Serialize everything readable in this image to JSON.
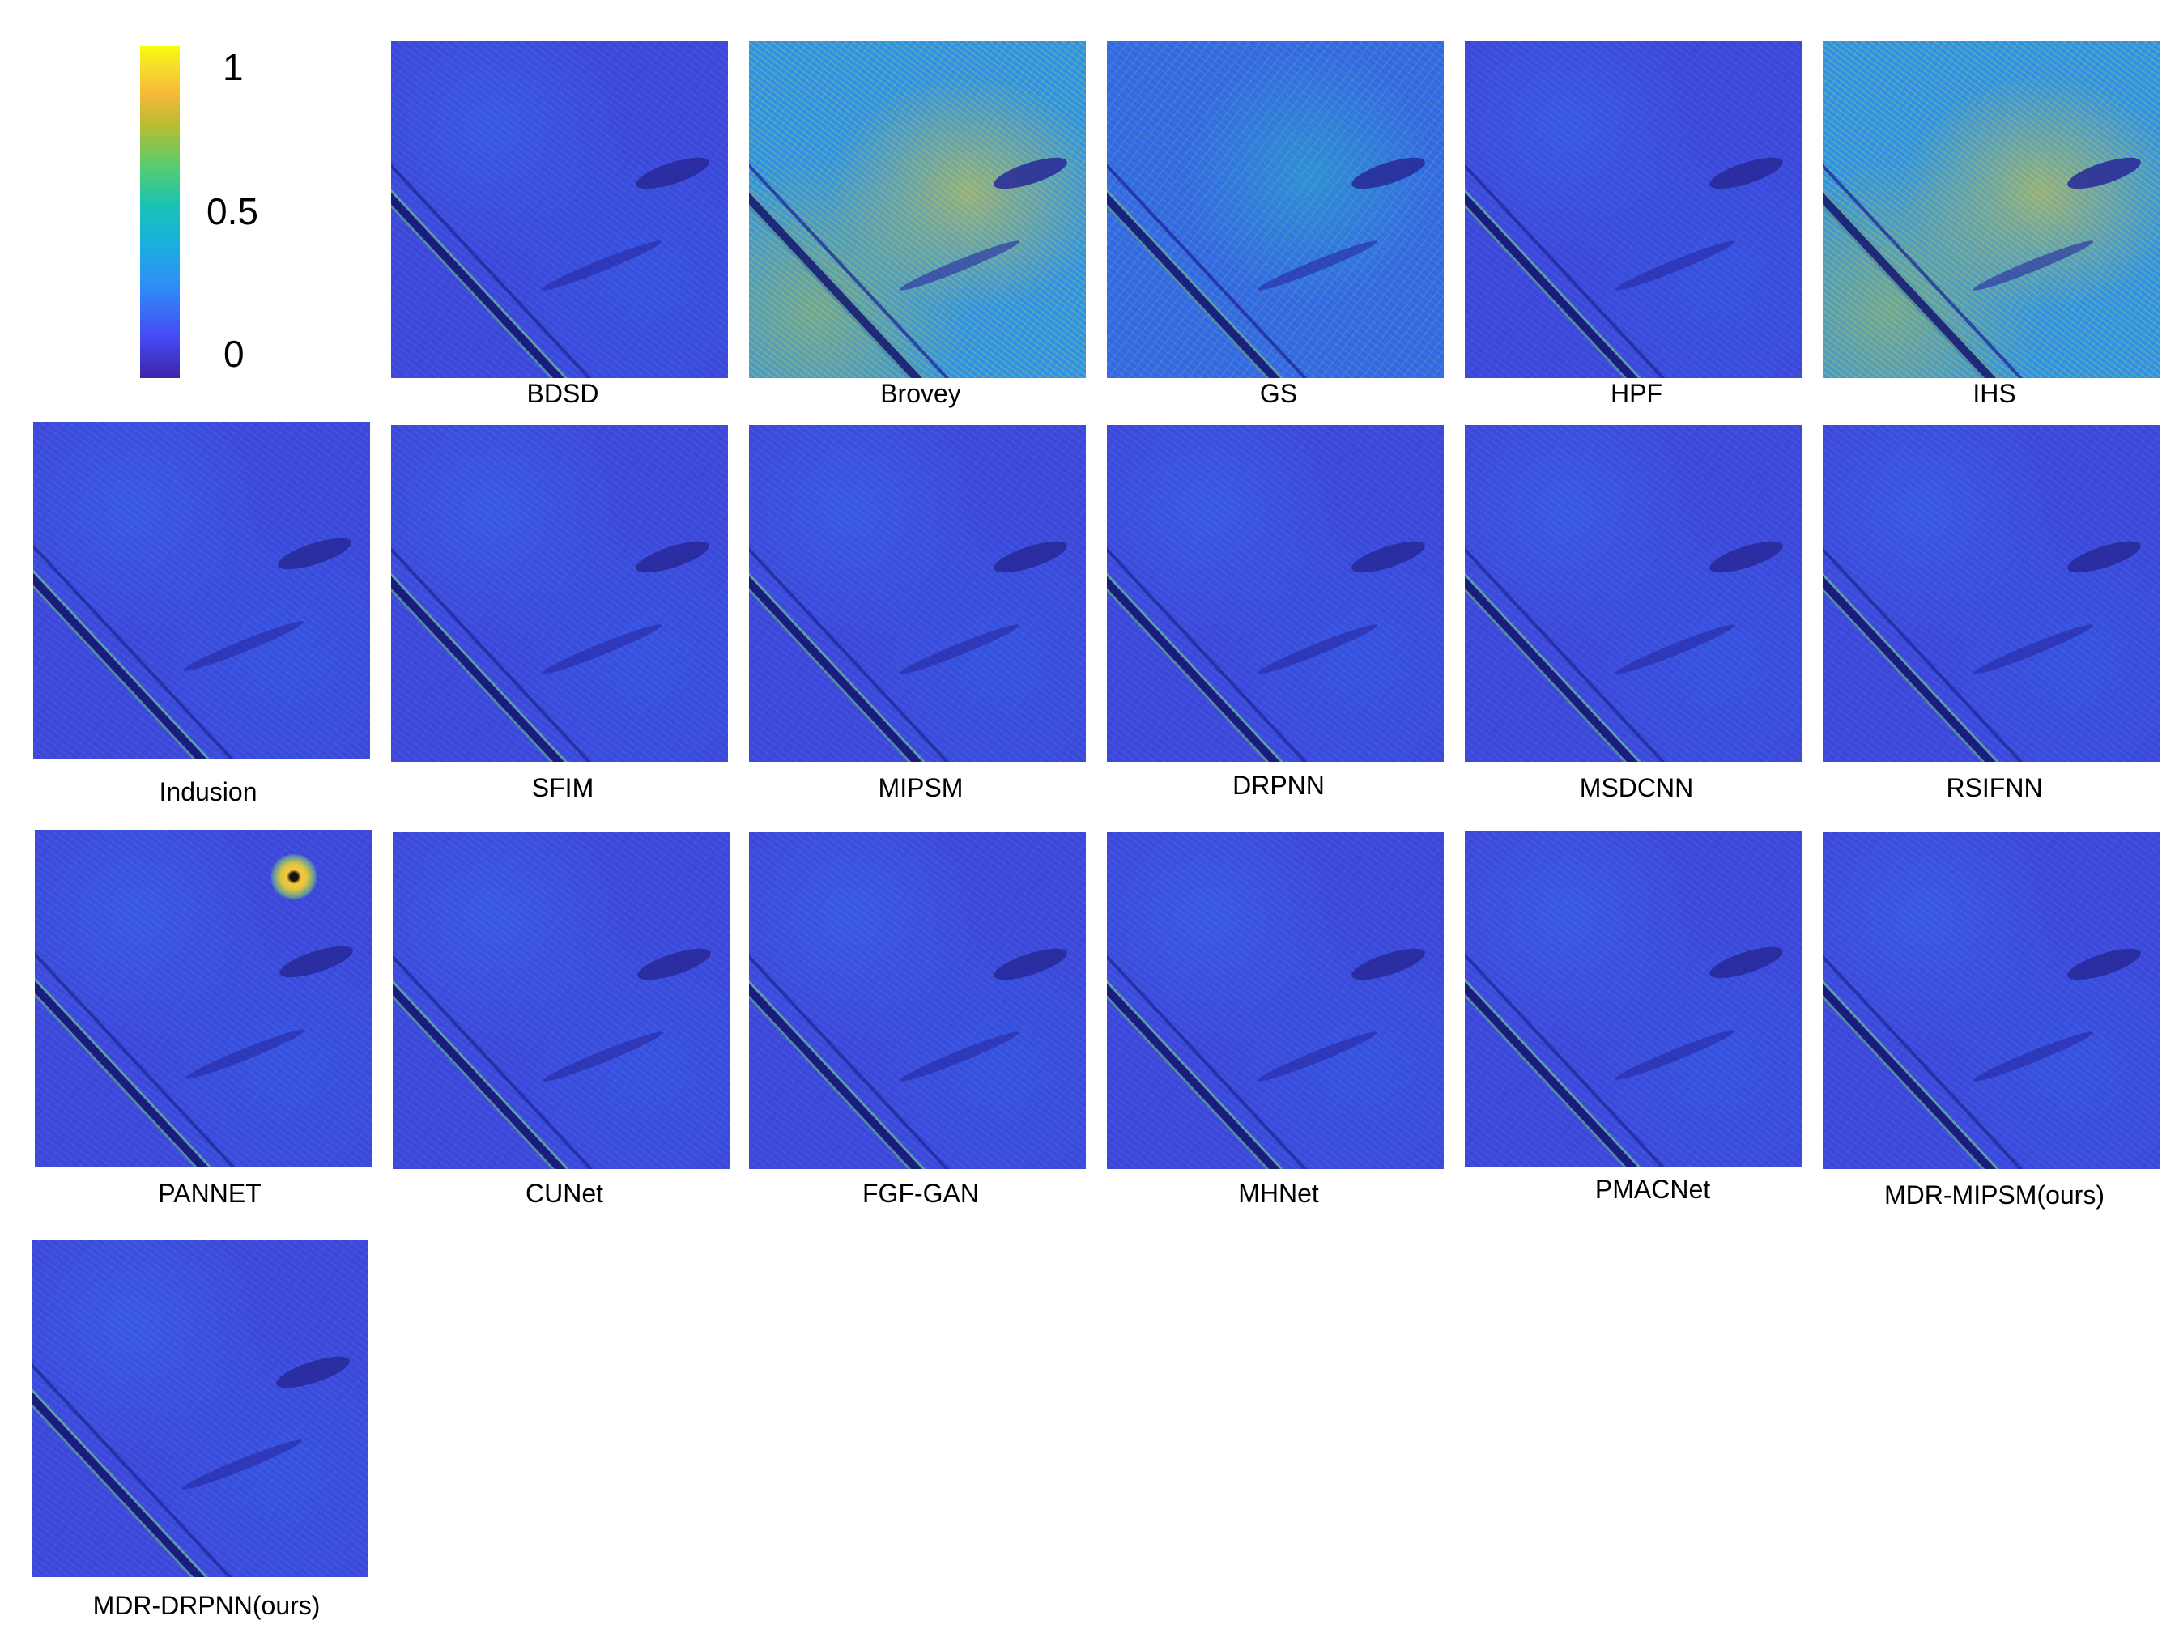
{
  "colorbar": {
    "ticks": [
      "1",
      "0.5",
      "0"
    ],
    "colormap": [
      "#3e26a8",
      "#4748f5",
      "#2f8ff8",
      "#17b3d9",
      "#18c4b4",
      "#59cc6e",
      "#b7bd32",
      "#f9b93a",
      "#f7de2a",
      "#f9fb0e"
    ]
  },
  "panels": [
    {
      "label": "BDSD",
      "intensity": "cool"
    },
    {
      "label": "Brovey",
      "intensity": "hot"
    },
    {
      "label": "GS",
      "intensity": "warm"
    },
    {
      "label": "HPF",
      "intensity": "cool"
    },
    {
      "label": "IHS",
      "intensity": "hot"
    },
    {
      "label": "Indusion",
      "intensity": "cool"
    },
    {
      "label": "SFIM",
      "intensity": "cool"
    },
    {
      "label": "MIPSM",
      "intensity": "cool"
    },
    {
      "label": "DRPNN",
      "intensity": "cool"
    },
    {
      "label": "MSDCNN",
      "intensity": "cool"
    },
    {
      "label": "RSIFNN",
      "intensity": "cool"
    },
    {
      "label": "PANNET",
      "intensity": "cool"
    },
    {
      "label": "CUNet",
      "intensity": "cool"
    },
    {
      "label": "FGF-GAN",
      "intensity": "cool"
    },
    {
      "label": "MHNet",
      "intensity": "cool"
    },
    {
      "label": "PMACNet",
      "intensity": "cool"
    },
    {
      "label": "MDR-MIPSM(ours)",
      "intensity": "cool"
    },
    {
      "label": "MDR-DRPNN(ours)",
      "intensity": "cool"
    }
  ]
}
